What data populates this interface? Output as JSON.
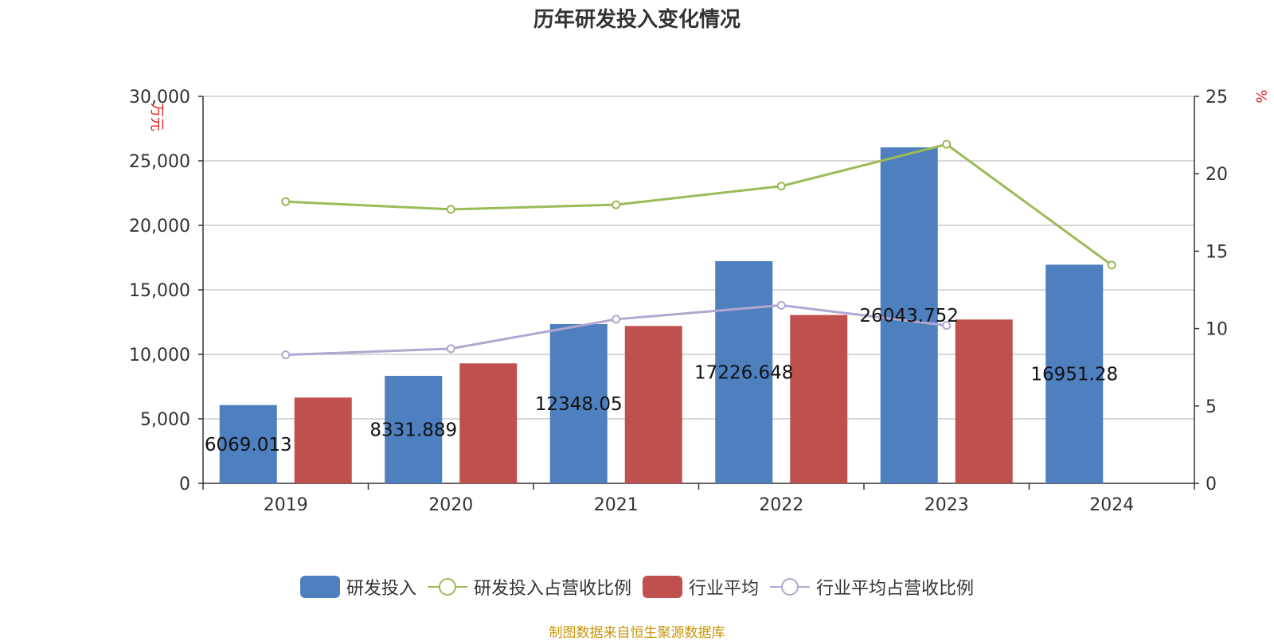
{
  "chart_data": {
    "type": "bar",
    "title": "历年研发投入变化情况",
    "categories": [
      "2019",
      "2020",
      "2021",
      "2022",
      "2023",
      "2024"
    ],
    "y_left": {
      "unit_label": "万元",
      "ylim": [
        0,
        30000
      ],
      "ticks": [
        "0",
        "5,000",
        "10,000",
        "15,000",
        "20,000",
        "25,000",
        "30,000"
      ]
    },
    "y_right": {
      "unit_label": "%",
      "ylim": [
        0,
        25
      ],
      "ticks": [
        "0",
        "5",
        "10",
        "15",
        "20",
        "25"
      ]
    },
    "series": [
      {
        "name": "研发投入",
        "type": "bar",
        "axis": "left",
        "color": "#4e7fbf",
        "values": [
          6069.013,
          8331.889,
          12348.05,
          17226.648,
          26043.752,
          16951.28
        ],
        "labels": [
          "6069.013",
          "8331.889",
          "12348.05",
          "17226.648",
          "26043.752",
          "16951.28"
        ]
      },
      {
        "name": "研发投入占营收比例",
        "type": "line",
        "axis": "right",
        "color": "#9bbb59",
        "values": [
          18.2,
          17.7,
          18.0,
          19.2,
          21.9,
          14.1
        ]
      },
      {
        "name": "行业平均",
        "type": "bar",
        "axis": "left",
        "color": "#c0504d",
        "values": [
          6650,
          9300,
          12200,
          13050,
          12700,
          null
        ]
      },
      {
        "name": "行业平均占营收比例",
        "type": "line",
        "axis": "right",
        "color": "#b3a6d0",
        "values": [
          8.3,
          8.7,
          10.6,
          11.5,
          10.2,
          null
        ]
      }
    ],
    "grid": true,
    "legend_position": "bottom"
  },
  "source_text": "制图数据来自恒生聚源数据库"
}
